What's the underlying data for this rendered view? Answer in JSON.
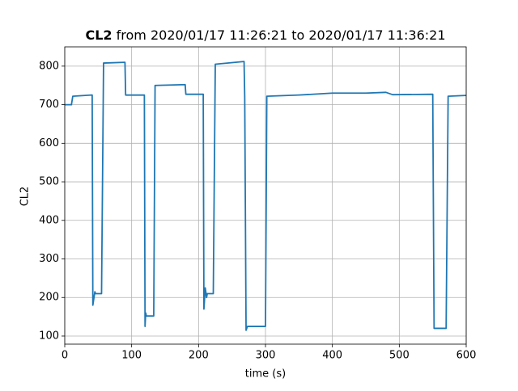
{
  "chart_data": {
    "type": "line",
    "title": [
      "CL2",
      "from 2020/01/17 11:26:21 to 2020/01/17 11:36:21"
    ],
    "x_label": "time (s)",
    "y_label": "CL2",
    "xlim": [
      0,
      600
    ],
    "ylim": [
      79,
      850
    ],
    "xticks": [
      0,
      100,
      200,
      300,
      400,
      500,
      600
    ],
    "yticks": [
      100,
      200,
      300,
      400,
      500,
      600,
      700,
      800
    ],
    "grid": true,
    "series": [
      {
        "name": "CL2",
        "color": "#1f77b4",
        "x": [
          0,
          10,
          12,
          40,
          41,
          42,
          45,
          46,
          55,
          58,
          90,
          91,
          119,
          120,
          121,
          122,
          133,
          135,
          180,
          181,
          207,
          208,
          210,
          212,
          213,
          222,
          225,
          268,
          269,
          271,
          273,
          300,
          302,
          350,
          400,
          450,
          480,
          490,
          550,
          552,
          570,
          573,
          600
        ],
        "values": [
          700,
          700,
          722,
          725,
          725,
          180,
          215,
          210,
          210,
          808,
          810,
          725,
          725,
          125,
          160,
          152,
          152,
          750,
          752,
          727,
          727,
          170,
          225,
          200,
          210,
          210,
          805,
          812,
          720,
          115,
          125,
          125,
          722,
          725,
          730,
          730,
          732,
          726,
          727,
          120,
          120,
          722,
          724
        ]
      }
    ]
  }
}
